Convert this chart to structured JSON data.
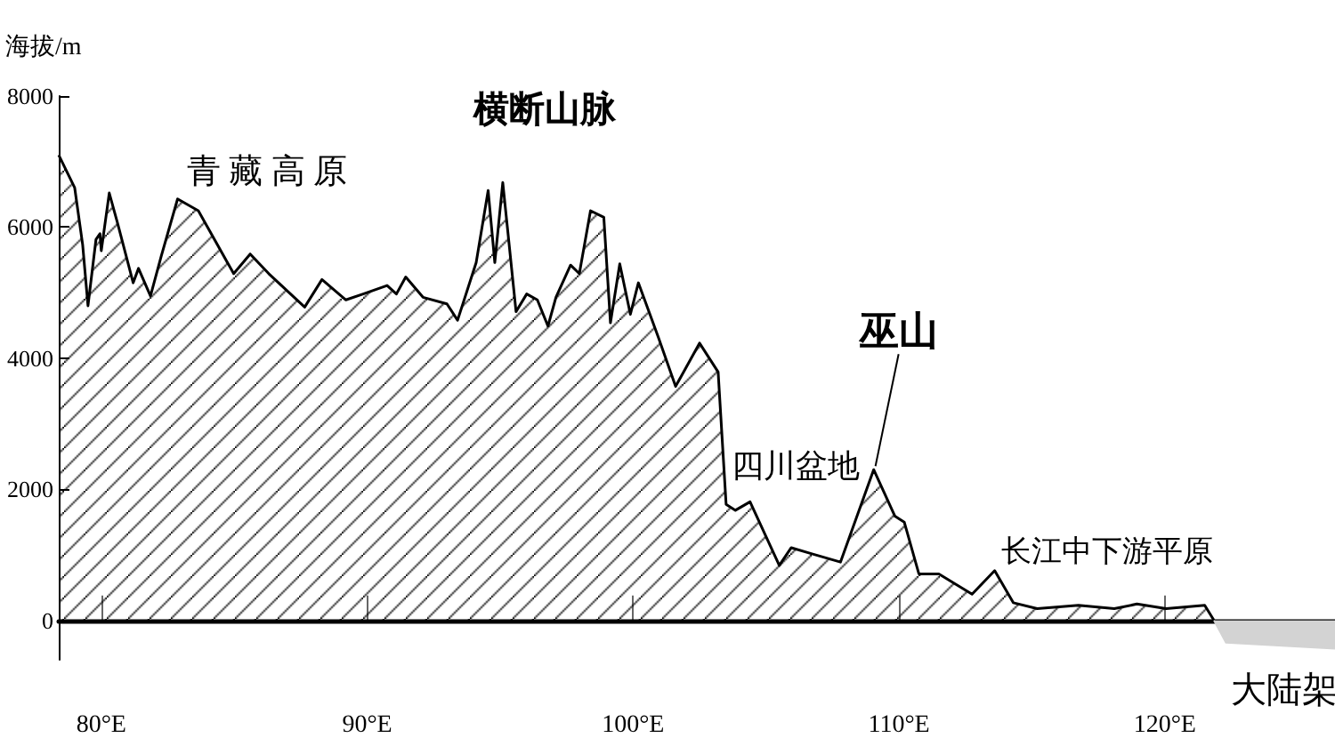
{
  "chart_data": {
    "type": "area",
    "ylabel": "海拔/m",
    "marker": "none",
    "xlim": [
      78.4,
      126.4
    ],
    "xticks": [
      {
        "value": 80,
        "label": "80°E"
      },
      {
        "value": 90,
        "label": "90°E"
      },
      {
        "value": 100,
        "label": "100°E"
      },
      {
        "value": 110,
        "label": "110°E"
      },
      {
        "value": 120,
        "label": "120°E"
      }
    ],
    "ylim": [
      -600,
      8000
    ],
    "yticks": [
      0,
      2000,
      4000,
      6000,
      8000
    ],
    "series": [
      {
        "color": "#000000",
        "x": [
          78.4,
          79.0,
          79.3,
          79.5,
          79.8,
          79.95,
          80.0,
          80.3,
          80.6,
          81.2,
          81.4,
          81.85,
          82.25,
          82.87,
          83.65,
          84.98,
          85.6,
          86.3,
          87.65,
          88.3,
          89.2,
          89.85,
          90.75,
          91.1,
          91.45,
          92.1,
          93.0,
          93.4,
          94.1,
          94.55,
          94.8,
          95.1,
          95.6,
          96.0,
          96.4,
          96.8,
          97.1,
          97.65,
          97.98,
          98.4,
          98.9,
          99.15,
          99.5,
          99.9,
          100.2,
          100.95,
          101.6,
          102.5,
          103.2,
          103.5,
          103.85,
          104.4,
          105.5,
          105.95,
          106.7,
          107.8,
          109.05,
          109.85,
          110.2,
          110.75,
          111.5,
          112.75,
          113.6,
          114.3,
          115.2,
          116.75,
          118.1,
          118.95,
          120.05,
          121.5,
          121.85
        ],
        "values": [
          7100,
          6600,
          5730,
          4800,
          5810,
          5900,
          5640,
          6520,
          6080,
          5150,
          5370,
          4950,
          5550,
          6430,
          6250,
          5290,
          5590,
          5290,
          4780,
          5200,
          4890,
          4980,
          5110,
          4980,
          5240,
          4930,
          4830,
          4580,
          5460,
          6560,
          5460,
          6680,
          4710,
          4980,
          4890,
          4490,
          4930,
          5420,
          5290,
          6250,
          6150,
          4540,
          5440,
          4670,
          5150,
          4320,
          3570,
          4230,
          3790,
          1770,
          1680,
          1810,
          840,
          1110,
          1020,
          890,
          2300,
          1590,
          1500,
          710,
          710,
          400,
          760,
          270,
          180,
          230,
          180,
          250,
          180,
          230,
          0
        ]
      },
      {
        "color": "#d3d3d3",
        "x": [
          121.85,
          122.3,
          126.4
        ],
        "values": [
          0,
          -340,
          -430
        ]
      }
    ],
    "annotations": [
      "青藏高原",
      "横断山脉",
      {
        "text": "巫山",
        "x": 109.05,
        "y": 2300
      },
      "四川盆地",
      "长江中下游平原",
      {
        "text": "大陆架",
        "x": 124.5,
        "y": -430
      }
    ]
  }
}
